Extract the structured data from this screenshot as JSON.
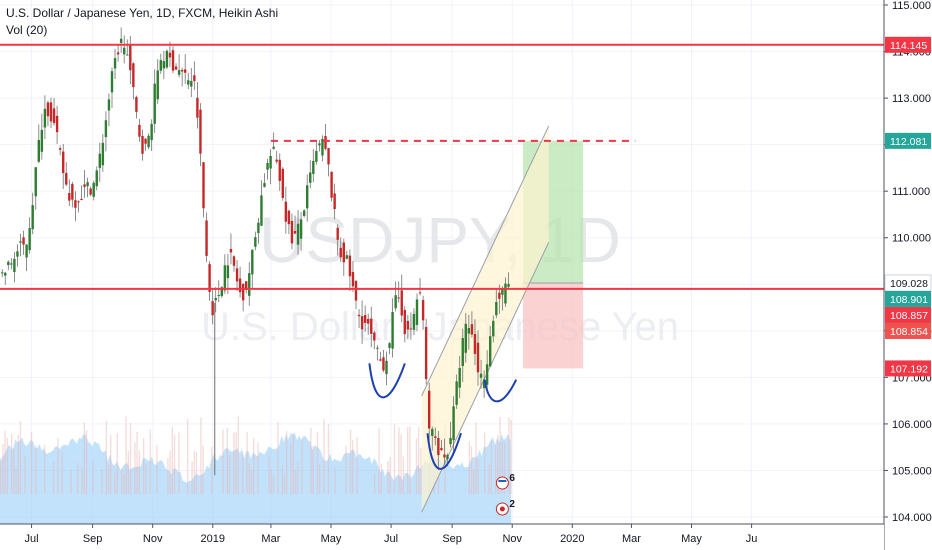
{
  "header": {
    "title": "U.S. Dollar / Japanese Yen, 1D, FXCM, Heikin Ashi",
    "volume_label": "Vol (20)"
  },
  "watermark": {
    "symbol": "USDJPY, 1D",
    "name": "U.S. Dollar / Japanese Yen"
  },
  "colors": {
    "up": "#26a69a",
    "down": "#ef5350",
    "up_candle": "#2e7d32",
    "down_candle": "#c62828",
    "level_line": "#f23645",
    "pattern": "#1e40af",
    "channel_fill": "#fdf3d0",
    "target_zone": "#b9e4b0",
    "stop_zone": "#f8c3c3",
    "volume": "#90caf9"
  },
  "chart_data": {
    "type": "candlestick",
    "style": "Heikin Ashi",
    "interval": "1D",
    "source": "FXCM",
    "ylim": [
      103.9,
      115.1
    ],
    "y_ticks": [
      "104.000",
      "105.000",
      "106.000",
      "107.000",
      "108.000",
      "109.000",
      "110.000",
      "111.000",
      "112.000",
      "113.000",
      "114.000",
      "115.000"
    ],
    "x_ticks": [
      "Jul",
      "Sep",
      "Nov",
      "2019",
      "Mar",
      "May",
      "Jul",
      "Sep",
      "Nov",
      "2020",
      "Mar",
      "May",
      "Ju"
    ],
    "price_path_anchors": [
      {
        "date": "2018-06-01",
        "price": 109.2
      },
      {
        "date": "2018-06-25",
        "price": 109.8
      },
      {
        "date": "2018-07-18",
        "price": 112.8
      },
      {
        "date": "2018-08-14",
        "price": 110.8
      },
      {
        "date": "2018-09-01",
        "price": 111.1
      },
      {
        "date": "2018-10-03",
        "price": 114.2
      },
      {
        "date": "2018-10-26",
        "price": 111.9
      },
      {
        "date": "2018-11-12",
        "price": 113.9
      },
      {
        "date": "2018-12-13",
        "price": 113.4
      },
      {
        "date": "2019-01-03",
        "price": 108.5
      },
      {
        "date": "2019-01-20",
        "price": 109.6
      },
      {
        "date": "2019-02-01",
        "price": 108.8
      },
      {
        "date": "2019-03-05",
        "price": 111.8
      },
      {
        "date": "2019-03-25",
        "price": 110.0
      },
      {
        "date": "2019-04-24",
        "price": 112.0
      },
      {
        "date": "2019-05-15",
        "price": 109.6
      },
      {
        "date": "2019-06-04",
        "price": 108.2
      },
      {
        "date": "2019-06-25",
        "price": 107.3
      },
      {
        "date": "2019-07-10",
        "price": 108.7
      },
      {
        "date": "2019-07-20",
        "price": 107.9
      },
      {
        "date": "2019-08-01",
        "price": 108.8
      },
      {
        "date": "2019-08-12",
        "price": 105.8
      },
      {
        "date": "2019-08-26",
        "price": 105.3
      },
      {
        "date": "2019-09-19",
        "price": 108.1
      },
      {
        "date": "2019-10-03",
        "price": 107.0
      },
      {
        "date": "2019-10-20",
        "price": 108.7
      },
      {
        "date": "2019-10-31",
        "price": 109.0
      }
    ],
    "levels": [
      {
        "name": "upper-resistance",
        "price": 114.145,
        "style": "solid"
      },
      {
        "name": "neckline-resistance",
        "price": 112.081,
        "style": "dashed"
      },
      {
        "name": "support",
        "price": 108.901,
        "style": "solid"
      }
    ],
    "position": {
      "target": 112.081,
      "entry": 109.028,
      "stop": 107.192
    },
    "price_labels": [
      {
        "text": "114.145",
        "price": 114.145,
        "color": "#f23645"
      },
      {
        "text": "112.081",
        "price": 112.081,
        "color": "#26a69a"
      },
      {
        "text": "109.028",
        "price": 109.028,
        "color": "#ffffff",
        "text_color": "#131722"
      },
      {
        "text": "108.901",
        "price": 108.901,
        "color": "#26a69a"
      },
      {
        "text": "108.857",
        "price": 108.857,
        "color": "#f23645"
      },
      {
        "text": "108.854",
        "price": 108.854,
        "color": "#ef5350"
      },
      {
        "text": "107.192",
        "price": 107.192,
        "color": "#f23645"
      }
    ],
    "events": [
      {
        "country": "US",
        "count": "6"
      },
      {
        "country": "JP",
        "count": "2"
      }
    ]
  }
}
